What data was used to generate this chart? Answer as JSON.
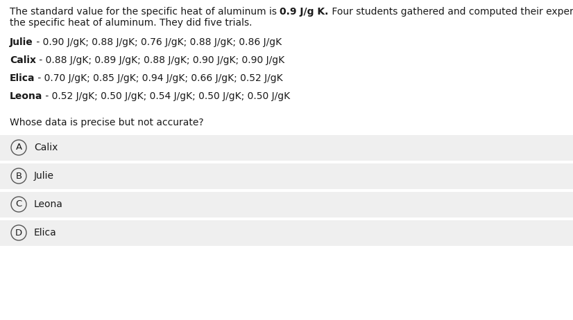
{
  "background_color": "#ffffff",
  "option_bg_color": "#efefef",
  "text_color": "#1a1a1a",
  "intro_line1": "The standard value for the specific heat of aluminum is ",
  "intro_bold": "0.9 J/g K.",
  "intro_line2": " Four students gathered and computed their experimental data for",
  "intro_line3": "the specific heat of aluminum. They did five trials.",
  "students": [
    {
      "name": "Julie",
      "data": " - 0.90 J/gK; 0.88 J/gK; 0.76 J/gK; 0.88 J/gK; 0.86 J/gK"
    },
    {
      "name": "Calix",
      "data": " - 0.88 J/gK; 0.89 J/gK; 0.88 J/gK; 0.90 J/gK; 0.90 J/gK"
    },
    {
      "name": "Elica",
      "data": " - 0.70 J/gK; 0.85 J/gK; 0.94 J/gK; 0.66 J/gK; 0.52 J/gK"
    },
    {
      "name": "Leona",
      "data": " - 0.52 J/gK; 0.50 J/gK; 0.54 J/gK; 0.50 J/gK; 0.50 J/gK"
    }
  ],
  "question": "Whose data is precise but not accurate?",
  "options": [
    {
      "letter": "A",
      "text": "Calix"
    },
    {
      "letter": "B",
      "text": "Julie"
    },
    {
      "letter": "C",
      "text": "Leona"
    },
    {
      "letter": "D",
      "text": "Elica"
    }
  ],
  "fontsize": 10.0,
  "option_fontsize": 10.0,
  "fig_width": 8.26,
  "fig_height": 4.62,
  "dpi": 100
}
